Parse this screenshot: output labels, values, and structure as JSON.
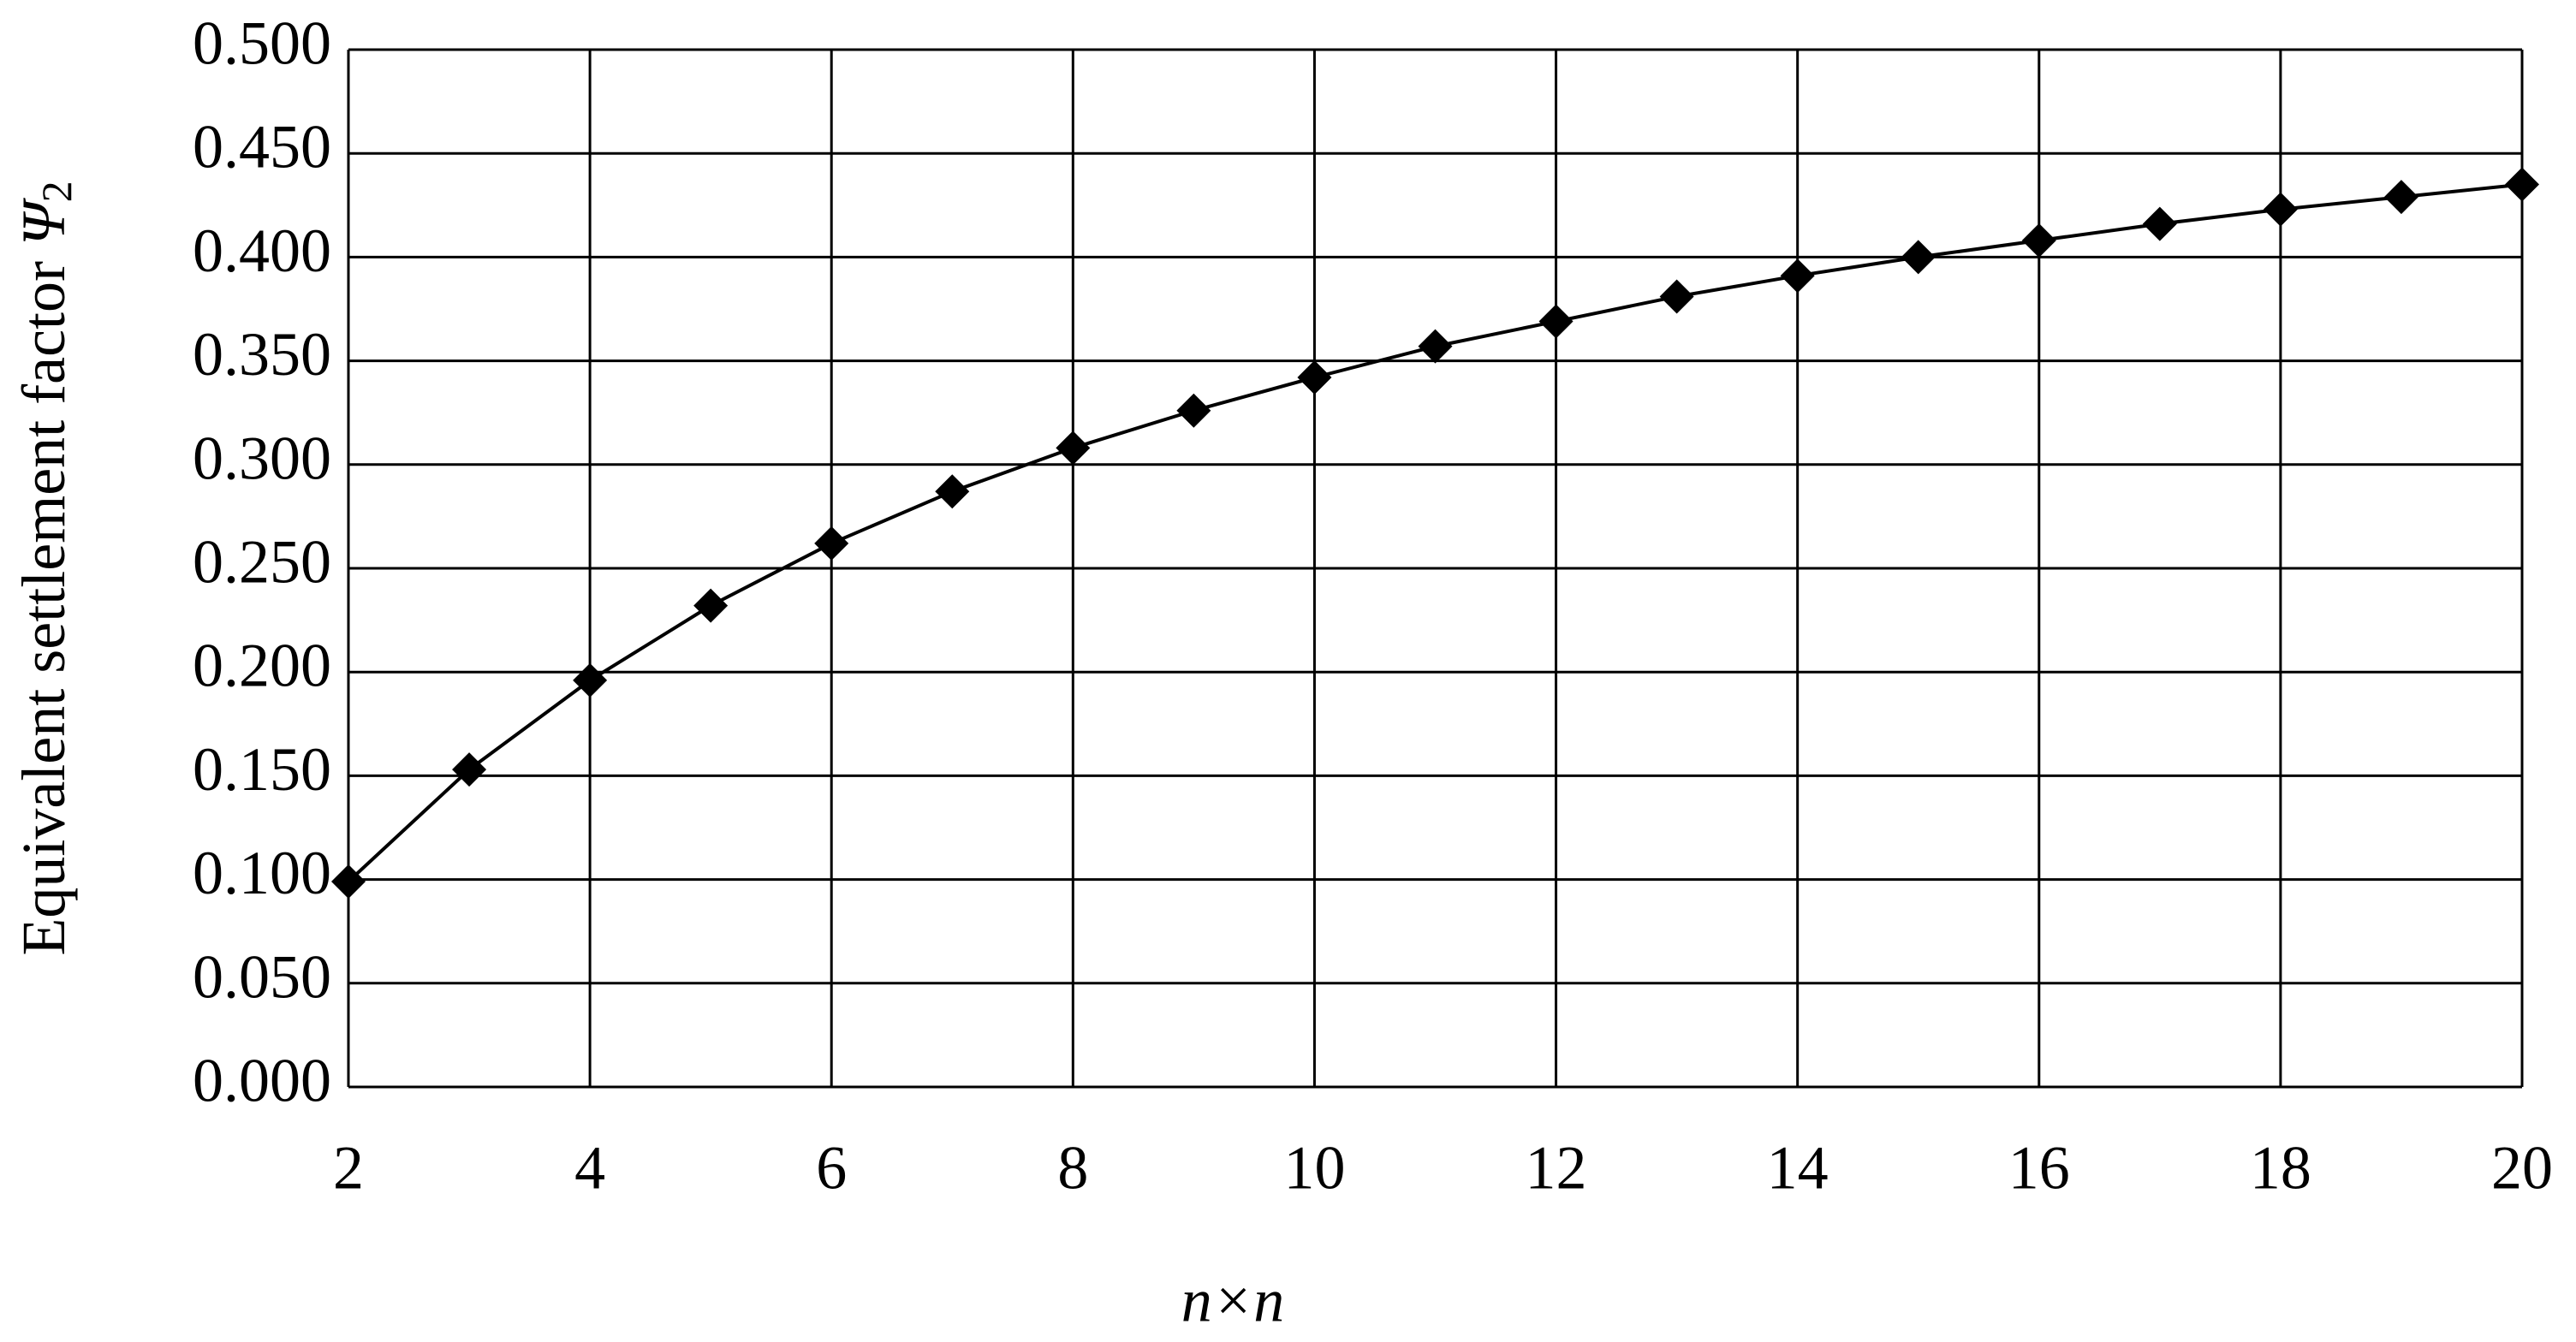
{
  "chart_data": {
    "type": "line",
    "x_label": "n×n",
    "y_label": "Equivalent settlement factor",
    "y_label_symbol": "Ψ",
    "y_label_subscript": "2",
    "x": [
      2,
      3,
      4,
      5,
      6,
      7,
      8,
      9,
      10,
      11,
      12,
      13,
      14,
      15,
      16,
      17,
      18,
      19,
      20
    ],
    "series": [
      {
        "color": "#000000",
        "values": [
          0.099,
          0.153,
          0.196,
          0.232,
          0.262,
          0.287,
          0.308,
          0.326,
          0.342,
          0.357,
          0.369,
          0.381,
          0.391,
          0.4,
          0.408,
          0.416,
          0.423,
          0.429,
          0.435
        ]
      }
    ],
    "xlim": [
      2,
      20
    ],
    "xticks": [
      2,
      4,
      6,
      8,
      10,
      12,
      14,
      16,
      18,
      20
    ],
    "ylim": [
      0,
      0.5
    ],
    "yticks": [
      {
        "value": 0,
        "label": "0.000"
      },
      {
        "value": 0.05,
        "label": "0.050"
      },
      {
        "value": 0.1,
        "label": "0.100"
      },
      {
        "value": 0.15,
        "label": "0.150"
      },
      {
        "value": 0.2,
        "label": "0.200"
      },
      {
        "value": 0.25,
        "label": "0.250"
      },
      {
        "value": 0.3,
        "label": "0.300"
      },
      {
        "value": 0.35,
        "label": "0.350"
      },
      {
        "value": 0.4,
        "label": "0.400"
      },
      {
        "value": 0.45,
        "label": "0.450"
      },
      {
        "value": 0.5,
        "label": "0.500"
      }
    ],
    "grid": true,
    "marker": "diamond"
  }
}
